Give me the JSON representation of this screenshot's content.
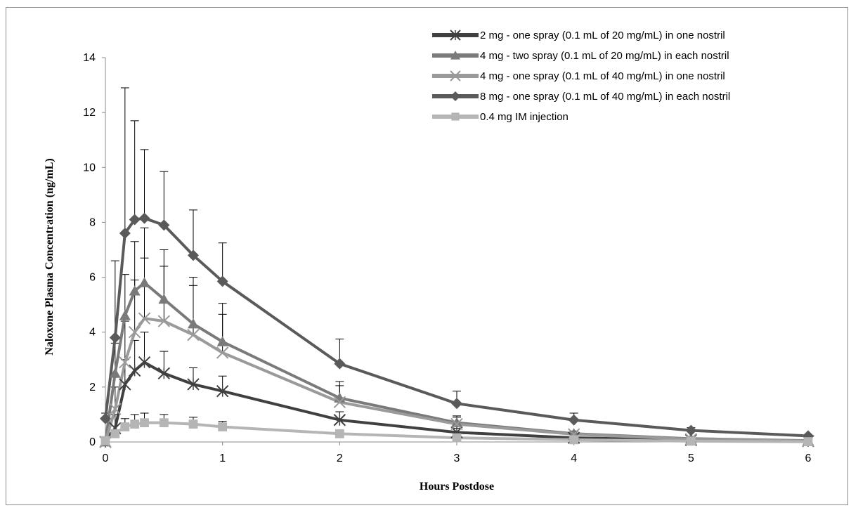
{
  "chart_data": {
    "type": "line",
    "xlabel": "Hours Postdose",
    "ylabel": "Naloxone Plasma Concentration (ng/mL)",
    "xlim": [
      0,
      6
    ],
    "ylim": [
      0,
      14
    ],
    "xticks": [
      "0",
      "1",
      "2",
      "3",
      "4",
      "5",
      "6"
    ],
    "yticks": [
      "0",
      "2",
      "4",
      "6",
      "8",
      "10",
      "12",
      "14"
    ],
    "grid": false,
    "legend_position": "top-right",
    "x": [
      0,
      0.083,
      0.167,
      0.25,
      0.333,
      0.5,
      0.75,
      1,
      2,
      3,
      4,
      5,
      6
    ],
    "series": [
      {
        "name": "2 mg - one spray (0.1 mL of 20 mg/mL) in one nostril",
        "color": "#404040",
        "marker": "cross",
        "values": [
          0,
          0.5,
          2.1,
          2.6,
          2.9,
          2.5,
          2.1,
          1.85,
          0.8,
          0.35,
          0.15,
          0.07,
          0.03
        ],
        "error": [
          0,
          0.5,
          0.9,
          1.1,
          1.1,
          0.8,
          0.6,
          0.55,
          0.3,
          0.15,
          0.05,
          0.03,
          0.02
        ]
      },
      {
        "name": "4 mg - two spray (0.1 mL of 20 mg/mL) in each nostril",
        "color": "#7a7a7a",
        "marker": "triangle",
        "values": [
          0,
          2.5,
          4.6,
          5.5,
          5.8,
          5.2,
          4.3,
          3.65,
          1.6,
          0.7,
          0.3,
          0.12,
          0.05
        ],
        "error": [
          0,
          1.1,
          1.5,
          1.8,
          2.0,
          1.8,
          1.7,
          1.4,
          0.6,
          0.25,
          0.1,
          0.05,
          0.02
        ]
      },
      {
        "name": "4 mg - one spray (0.1 mL of 40 mg/mL) in one nostril",
        "color": "#9a9a9a",
        "marker": "x",
        "values": [
          0,
          1.2,
          2.9,
          4.0,
          4.5,
          4.4,
          3.9,
          3.25,
          1.45,
          0.65,
          0.28,
          0.1,
          0.04
        ],
        "error": [
          0,
          0.8,
          1.5,
          1.9,
          2.2,
          2.0,
          1.8,
          1.4,
          0.6,
          0.25,
          0.1,
          0.05,
          0.02
        ]
      },
      {
        "name": "8 mg - one spray (0.1 mL of 40 mg/mL) in each nostril",
        "color": "#5a5a5a",
        "marker": "diamond",
        "values": [
          0.85,
          3.8,
          7.6,
          8.1,
          8.15,
          7.9,
          6.8,
          5.85,
          2.85,
          1.4,
          0.8,
          0.42,
          0.22
        ],
        "error": [
          0.2,
          2.8,
          5.3,
          3.6,
          2.5,
          1.95,
          1.65,
          1.4,
          0.9,
          0.45,
          0.25,
          0.1,
          0.05
        ]
      },
      {
        "name": "0.4 mg IM injection",
        "color": "#b5b5b5",
        "marker": "square",
        "values": [
          0.05,
          0.3,
          0.55,
          0.65,
          0.7,
          0.7,
          0.65,
          0.55,
          0.3,
          0.15,
          0.08,
          0.03,
          0.01
        ],
        "error": [
          0,
          0.1,
          0.3,
          0.35,
          0.35,
          0.3,
          0.25,
          0.2,
          0.1,
          0.05,
          0.03,
          0.02,
          0.01
        ]
      }
    ]
  }
}
